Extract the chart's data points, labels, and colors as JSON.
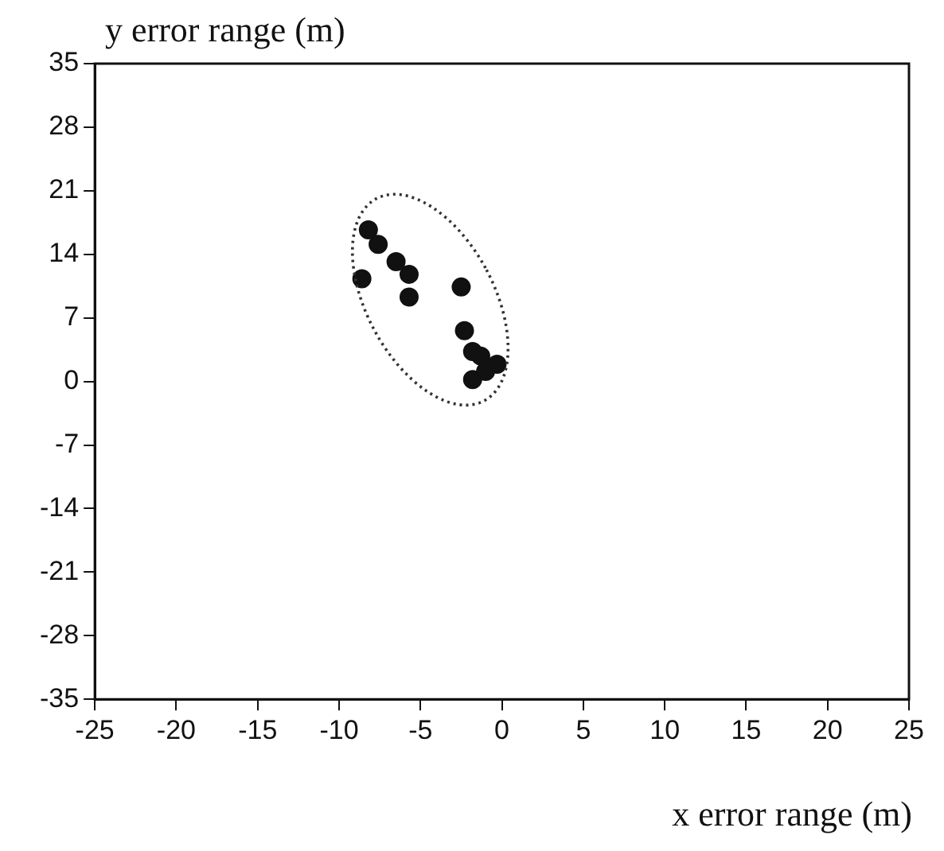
{
  "chart_data": {
    "type": "scatter",
    "xlabel": "x error range (m)",
    "ylabel": "y error range (m)",
    "xlim": [
      -25,
      25
    ],
    "xticks": [
      -25,
      -20,
      -15,
      -10,
      -5,
      0,
      5,
      10,
      15,
      20,
      25
    ],
    "ylim": [
      -35,
      35
    ],
    "yticks": [
      -35,
      -28,
      -21,
      -14,
      -7,
      0,
      7,
      14,
      21,
      28,
      35
    ],
    "grid": false,
    "legend": false,
    "marker": "circle",
    "series": [
      {
        "color": "#111111",
        "x": [
          -8.2,
          -7.6,
          -6.5,
          -5.7,
          -8.6,
          -5.7,
          -2.5,
          -2.3,
          -1.8,
          -1.3,
          -0.8,
          -0.3,
          -1.6,
          -1.8,
          -1.0
        ],
        "values": [
          16.7,
          15.1,
          13.2,
          11.8,
          11.3,
          9.3,
          10.4,
          5.6,
          3.3,
          2.8,
          null,
          1.9,
          null,
          0.2,
          1.1
        ]
      }
    ]
  }
}
